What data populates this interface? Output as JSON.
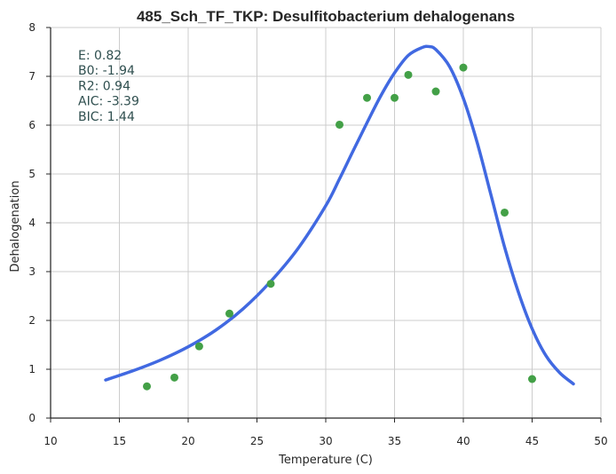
{
  "chart_data": {
    "type": "scatter",
    "title": "485_Sch_TF_TKP: Desulfitobacterium dehalogenans",
    "xlabel": "Temperature (C)",
    "ylabel": "Dehalogenation",
    "xlim": [
      10,
      50
    ],
    "ylim": [
      0,
      8
    ],
    "xticks": [
      10,
      15,
      20,
      25,
      30,
      35,
      40,
      45,
      50
    ],
    "yticks": [
      0,
      1,
      2,
      3,
      4,
      5,
      6,
      7,
      8
    ],
    "grid": true,
    "annotations": [
      "E:  0.82",
      "B0:  -1.94",
      "R2:  0.94",
      "AIC: -3.39",
      "BIC: 1.44"
    ],
    "annotation_color": "#2f4f4f",
    "series": [
      {
        "kind": "points",
        "color": "#43a047",
        "x": [
          17.0,
          19.0,
          20.8,
          23.0,
          26.0,
          31.0,
          33.0,
          35.0,
          36.0,
          38.0,
          40.0,
          43.0,
          45.0
        ],
        "y": [
          0.65,
          0.83,
          1.47,
          2.14,
          2.75,
          6.01,
          6.56,
          6.56,
          7.03,
          6.69,
          7.18,
          4.21,
          0.8
        ]
      },
      {
        "kind": "line",
        "color": "#4169e1",
        "x": [
          14,
          16,
          18,
          20,
          22,
          24,
          26,
          28,
          30,
          31,
          32,
          33,
          34,
          35,
          36,
          37,
          37.5,
          38,
          39,
          40,
          41,
          42,
          43,
          44,
          45,
          46,
          47,
          48
        ],
        "y": [
          0.78,
          0.97,
          1.19,
          1.46,
          1.8,
          2.24,
          2.8,
          3.48,
          4.35,
          4.9,
          5.48,
          6.05,
          6.6,
          7.07,
          7.43,
          7.59,
          7.61,
          7.55,
          7.2,
          6.55,
          5.65,
          4.58,
          3.5,
          2.58,
          1.83,
          1.28,
          0.93,
          0.7
        ]
      }
    ]
  }
}
